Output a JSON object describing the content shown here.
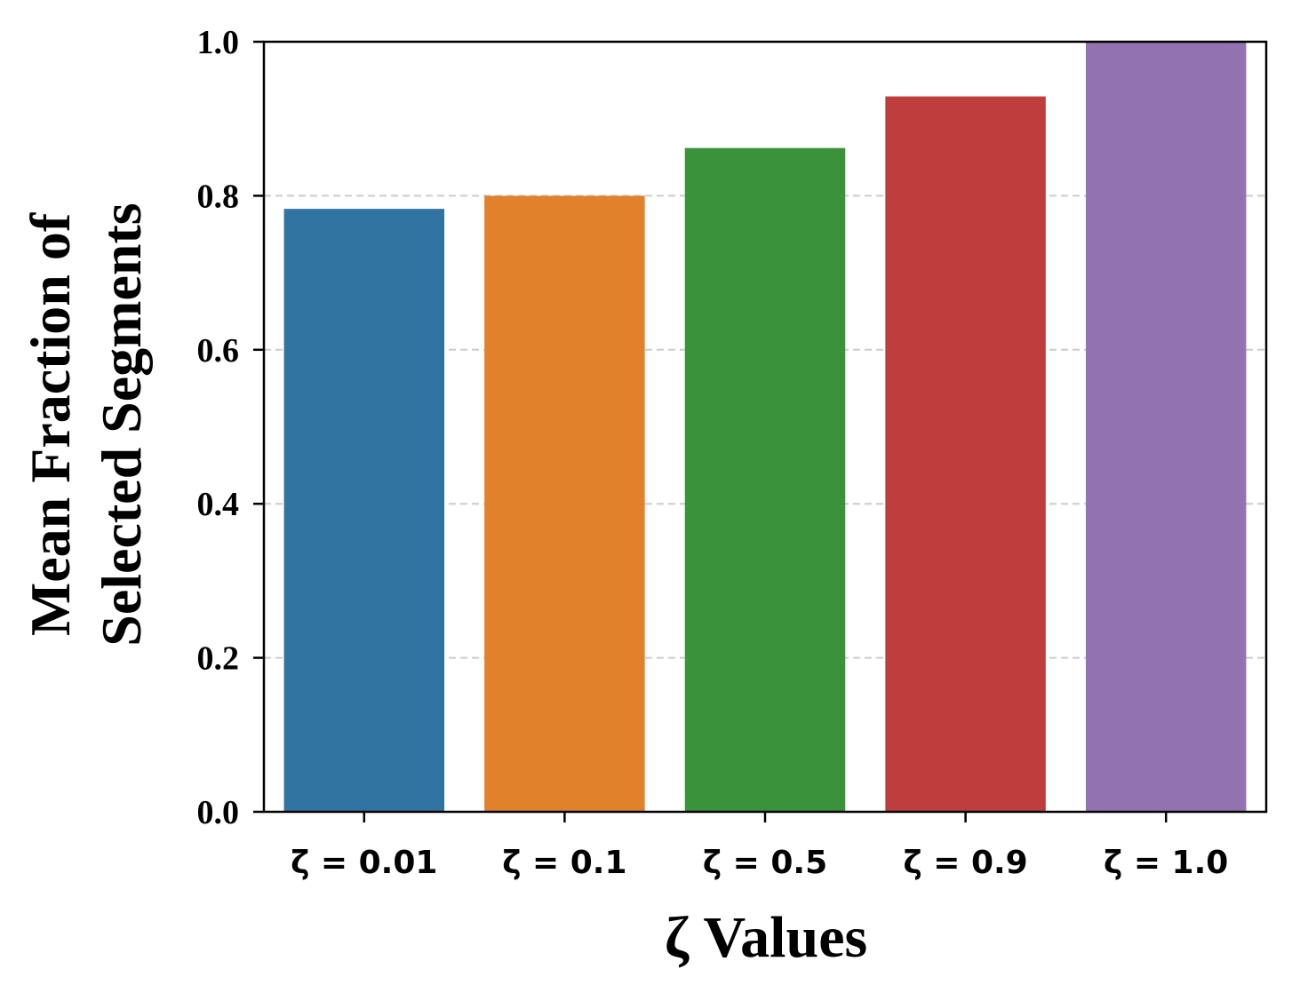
{
  "chart_data": {
    "type": "bar",
    "categories": [
      "ζ = 0.01",
      "ζ = 0.1",
      "ζ = 0.5",
      "ζ = 0.9",
      "ζ = 1.0"
    ],
    "values": [
      0.783,
      0.8,
      0.862,
      0.929,
      1.0
    ],
    "colors": [
      "#3274a1",
      "#e1812c",
      "#3a923a",
      "#c03d3e",
      "#9372b2"
    ],
    "title": "",
    "xlabel": "ζ Values",
    "ylabel_lines": [
      "Mean Fraction of",
      "Selected Segments"
    ],
    "ylim": [
      0,
      1.0
    ],
    "yticks": [
      0.0,
      0.2,
      0.4,
      0.6,
      0.8,
      1.0
    ],
    "ytick_labels": [
      "0.0",
      "0.2",
      "0.4",
      "0.6",
      "0.8",
      "1.0"
    ],
    "grid": "y-dashed"
  }
}
